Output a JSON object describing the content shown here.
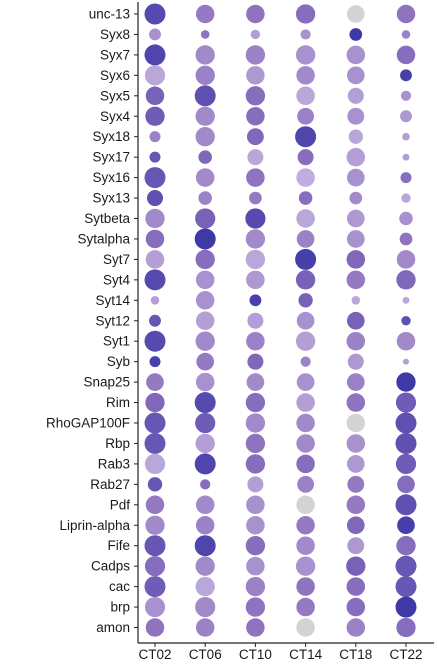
{
  "chart_data": {
    "type": "scatter",
    "subtype": "dot-plot",
    "title": "",
    "xlabel": "",
    "ylabel": "",
    "x_categories": [
      "CT02",
      "CT06",
      "CT10",
      "CT14",
      "CT18",
      "CT22"
    ],
    "y_categories": [
      "unc-13",
      "Syx8",
      "Syx7",
      "Syx6",
      "Syx5",
      "Syx4",
      "Syx18",
      "Syx17",
      "Syx16",
      "Syx13",
      "Sytbeta",
      "Sytalpha",
      "Syt7",
      "Syt4",
      "Syt14",
      "Syt12",
      "Syt1",
      "Syb",
      "Snap25",
      "Rim",
      "RhoGAP100F",
      "Rbp",
      "Rab3",
      "Rab27",
      "Pdf",
      "Liprin-alpha",
      "Fife",
      "Cadps",
      "cac",
      "brp",
      "amon"
    ],
    "size_scale": "relative dot size 0-1",
    "color_scale": "relative intensity 0-1 (light lavender to deep blue-purple); grey = missing/low",
    "colors": {
      "low": "#cbbde4",
      "mid": "#8f73bf",
      "high": "#3f39a8",
      "missing": "#d3d3d3"
    },
    "rows": [
      {
        "gene": "unc-13",
        "size": [
          1.0,
          0.85,
          0.85,
          0.9,
          0.8,
          0.85
        ],
        "color": [
          0.85,
          0.45,
          0.5,
          0.55,
          -1,
          0.5
        ]
      },
      {
        "gene": "Syx8",
        "size": [
          0.45,
          0.25,
          0.3,
          0.35,
          0.5,
          0.25
        ],
        "color": [
          0.3,
          0.5,
          0.2,
          0.3,
          1.0,
          0.4
        ]
      },
      {
        "gene": "Syx7",
        "size": [
          1.0,
          0.9,
          0.9,
          0.9,
          0.85,
          0.85
        ],
        "color": [
          0.9,
          0.35,
          0.4,
          0.3,
          0.3,
          0.55
        ]
      },
      {
        "gene": "Syx6",
        "size": [
          0.95,
          0.9,
          0.85,
          0.85,
          0.8,
          0.45
        ],
        "color": [
          0.15,
          0.4,
          0.25,
          0.35,
          0.3,
          0.95
        ]
      },
      {
        "gene": "Syx5",
        "size": [
          0.85,
          1.0,
          0.9,
          0.85,
          0.7,
          0.35
        ],
        "color": [
          0.65,
          0.8,
          0.55,
          0.15,
          0.2,
          0.3
        ]
      },
      {
        "gene": "Syx4",
        "size": [
          0.9,
          0.9,
          0.85,
          0.75,
          0.75,
          0.45
        ],
        "color": [
          0.7,
          0.35,
          0.55,
          0.4,
          0.3,
          0.25
        ]
      },
      {
        "gene": "Syx18",
        "size": [
          0.4,
          0.9,
          0.75,
          1.0,
          0.6,
          0.2
        ],
        "color": [
          0.4,
          0.35,
          0.6,
          0.9,
          0.15,
          0.2
        ]
      },
      {
        "gene": "Syx17",
        "size": [
          0.4,
          0.55,
          0.7,
          0.7,
          0.85,
          0.15
        ],
        "color": [
          0.75,
          0.6,
          0.15,
          0.55,
          0.2,
          0.2
        ]
      },
      {
        "gene": "Syx16",
        "size": [
          1.0,
          0.85,
          0.85,
          0.85,
          0.8,
          0.4
        ],
        "color": [
          0.75,
          0.35,
          0.5,
          0.1,
          0.3,
          0.55
        ]
      },
      {
        "gene": "Syx13",
        "size": [
          0.7,
          0.55,
          0.5,
          0.55,
          0.5,
          0.3
        ],
        "color": [
          0.8,
          0.4,
          0.45,
          0.55,
          0.35,
          0.15
        ]
      },
      {
        "gene": "Sytbeta",
        "size": [
          0.9,
          0.95,
          0.95,
          0.85,
          0.8,
          0.55
        ],
        "color": [
          0.35,
          0.65,
          0.85,
          0.15,
          0.25,
          0.3
        ]
      },
      {
        "gene": "Sytalpha",
        "size": [
          0.85,
          1.0,
          0.9,
          0.8,
          0.8,
          0.5
        ],
        "color": [
          0.55,
          1.0,
          0.35,
          0.4,
          0.3,
          0.5
        ]
      },
      {
        "gene": "Syt7",
        "size": [
          0.85,
          0.9,
          0.9,
          1.0,
          0.85,
          0.85
        ],
        "color": [
          0.2,
          0.55,
          0.15,
          0.95,
          0.6,
          0.35
        ]
      },
      {
        "gene": "Syt4",
        "size": [
          1.0,
          0.85,
          0.85,
          0.9,
          0.85,
          0.9
        ],
        "color": [
          0.85,
          0.3,
          0.25,
          0.65,
          0.45,
          0.6
        ]
      },
      {
        "gene": "Syt14",
        "size": [
          0.25,
          0.85,
          0.45,
          0.6,
          0.25,
          0.15
        ],
        "color": [
          0.2,
          0.3,
          0.95,
          0.65,
          0.15,
          0.15
        ]
      },
      {
        "gene": "Syt12",
        "size": [
          0.45,
          0.85,
          0.7,
          0.8,
          0.8,
          0.3
        ],
        "color": [
          0.75,
          0.2,
          0.2,
          0.3,
          0.65,
          0.8
        ]
      },
      {
        "gene": "Syt1",
        "size": [
          1.0,
          0.9,
          0.85,
          0.9,
          0.85,
          0.85
        ],
        "color": [
          0.85,
          0.35,
          0.4,
          0.2,
          0.4,
          0.35
        ]
      },
      {
        "gene": "Syb",
        "size": [
          0.4,
          0.8,
          0.7,
          0.35,
          0.7,
          0.1
        ],
        "color": [
          0.95,
          0.45,
          0.6,
          0.4,
          0.25,
          0.2
        ]
      },
      {
        "gene": "Snap25",
        "size": [
          0.8,
          0.85,
          0.8,
          0.8,
          0.8,
          0.9
        ],
        "color": [
          0.45,
          0.3,
          0.35,
          0.3,
          0.4,
          1.0
        ]
      },
      {
        "gene": "Rim",
        "size": [
          0.9,
          1.0,
          0.9,
          0.85,
          0.85,
          0.95
        ],
        "color": [
          0.6,
          0.85,
          0.55,
          0.2,
          0.5,
          0.7
        ]
      },
      {
        "gene": "RhoGAP100F",
        "size": [
          1.0,
          0.95,
          0.9,
          0.85,
          0.85,
          1.0
        ],
        "color": [
          0.75,
          0.7,
          0.35,
          0.35,
          -1,
          0.8
        ]
      },
      {
        "gene": "Rbp",
        "size": [
          1.0,
          0.9,
          0.9,
          0.85,
          0.85,
          1.0
        ],
        "color": [
          0.75,
          0.2,
          0.5,
          0.35,
          0.3,
          0.8
        ]
      },
      {
        "gene": "Rab3",
        "size": [
          0.95,
          1.0,
          0.9,
          0.85,
          0.8,
          0.95
        ],
        "color": [
          0.15,
          0.9,
          0.55,
          0.55,
          0.25,
          0.7
        ]
      },
      {
        "gene": "Rab27",
        "size": [
          0.6,
          0.35,
          0.7,
          0.75,
          0.75,
          0.8
        ],
        "color": [
          0.75,
          0.55,
          0.2,
          0.4,
          0.45,
          0.55
        ]
      },
      {
        "gene": "Pdf",
        "size": [
          0.85,
          0.85,
          0.85,
          0.85,
          0.85,
          1.0
        ],
        "color": [
          0.45,
          0.35,
          0.3,
          -1,
          0.45,
          0.8
        ]
      },
      {
        "gene": "Liprin-alpha",
        "size": [
          0.9,
          0.85,
          0.85,
          0.85,
          0.8,
          0.8
        ],
        "color": [
          0.35,
          0.4,
          0.3,
          0.45,
          0.6,
          0.95
        ]
      },
      {
        "gene": "Fife",
        "size": [
          1.0,
          1.0,
          0.9,
          0.85,
          0.75,
          0.9
        ],
        "color": [
          0.75,
          0.9,
          0.55,
          0.35,
          0.25,
          0.55
        ]
      },
      {
        "gene": "Cadps",
        "size": [
          0.95,
          0.9,
          0.85,
          0.9,
          0.9,
          1.0
        ],
        "color": [
          0.55,
          0.35,
          0.3,
          0.3,
          0.65,
          0.75
        ]
      },
      {
        "gene": "cac",
        "size": [
          1.0,
          0.9,
          0.9,
          0.85,
          0.85,
          1.0
        ],
        "color": [
          0.7,
          0.15,
          0.4,
          0.5,
          0.55,
          0.75
        ]
      },
      {
        "gene": "brp",
        "size": [
          0.95,
          0.95,
          0.9,
          0.85,
          0.85,
          1.0
        ],
        "color": [
          0.3,
          0.35,
          0.5,
          0.45,
          0.55,
          1.0
        ]
      },
      {
        "gene": "amon",
        "size": [
          0.85,
          0.85,
          0.85,
          0.85,
          0.85,
          0.9
        ],
        "color": [
          0.5,
          0.4,
          0.5,
          -1,
          0.4,
          0.55
        ]
      }
    ]
  }
}
